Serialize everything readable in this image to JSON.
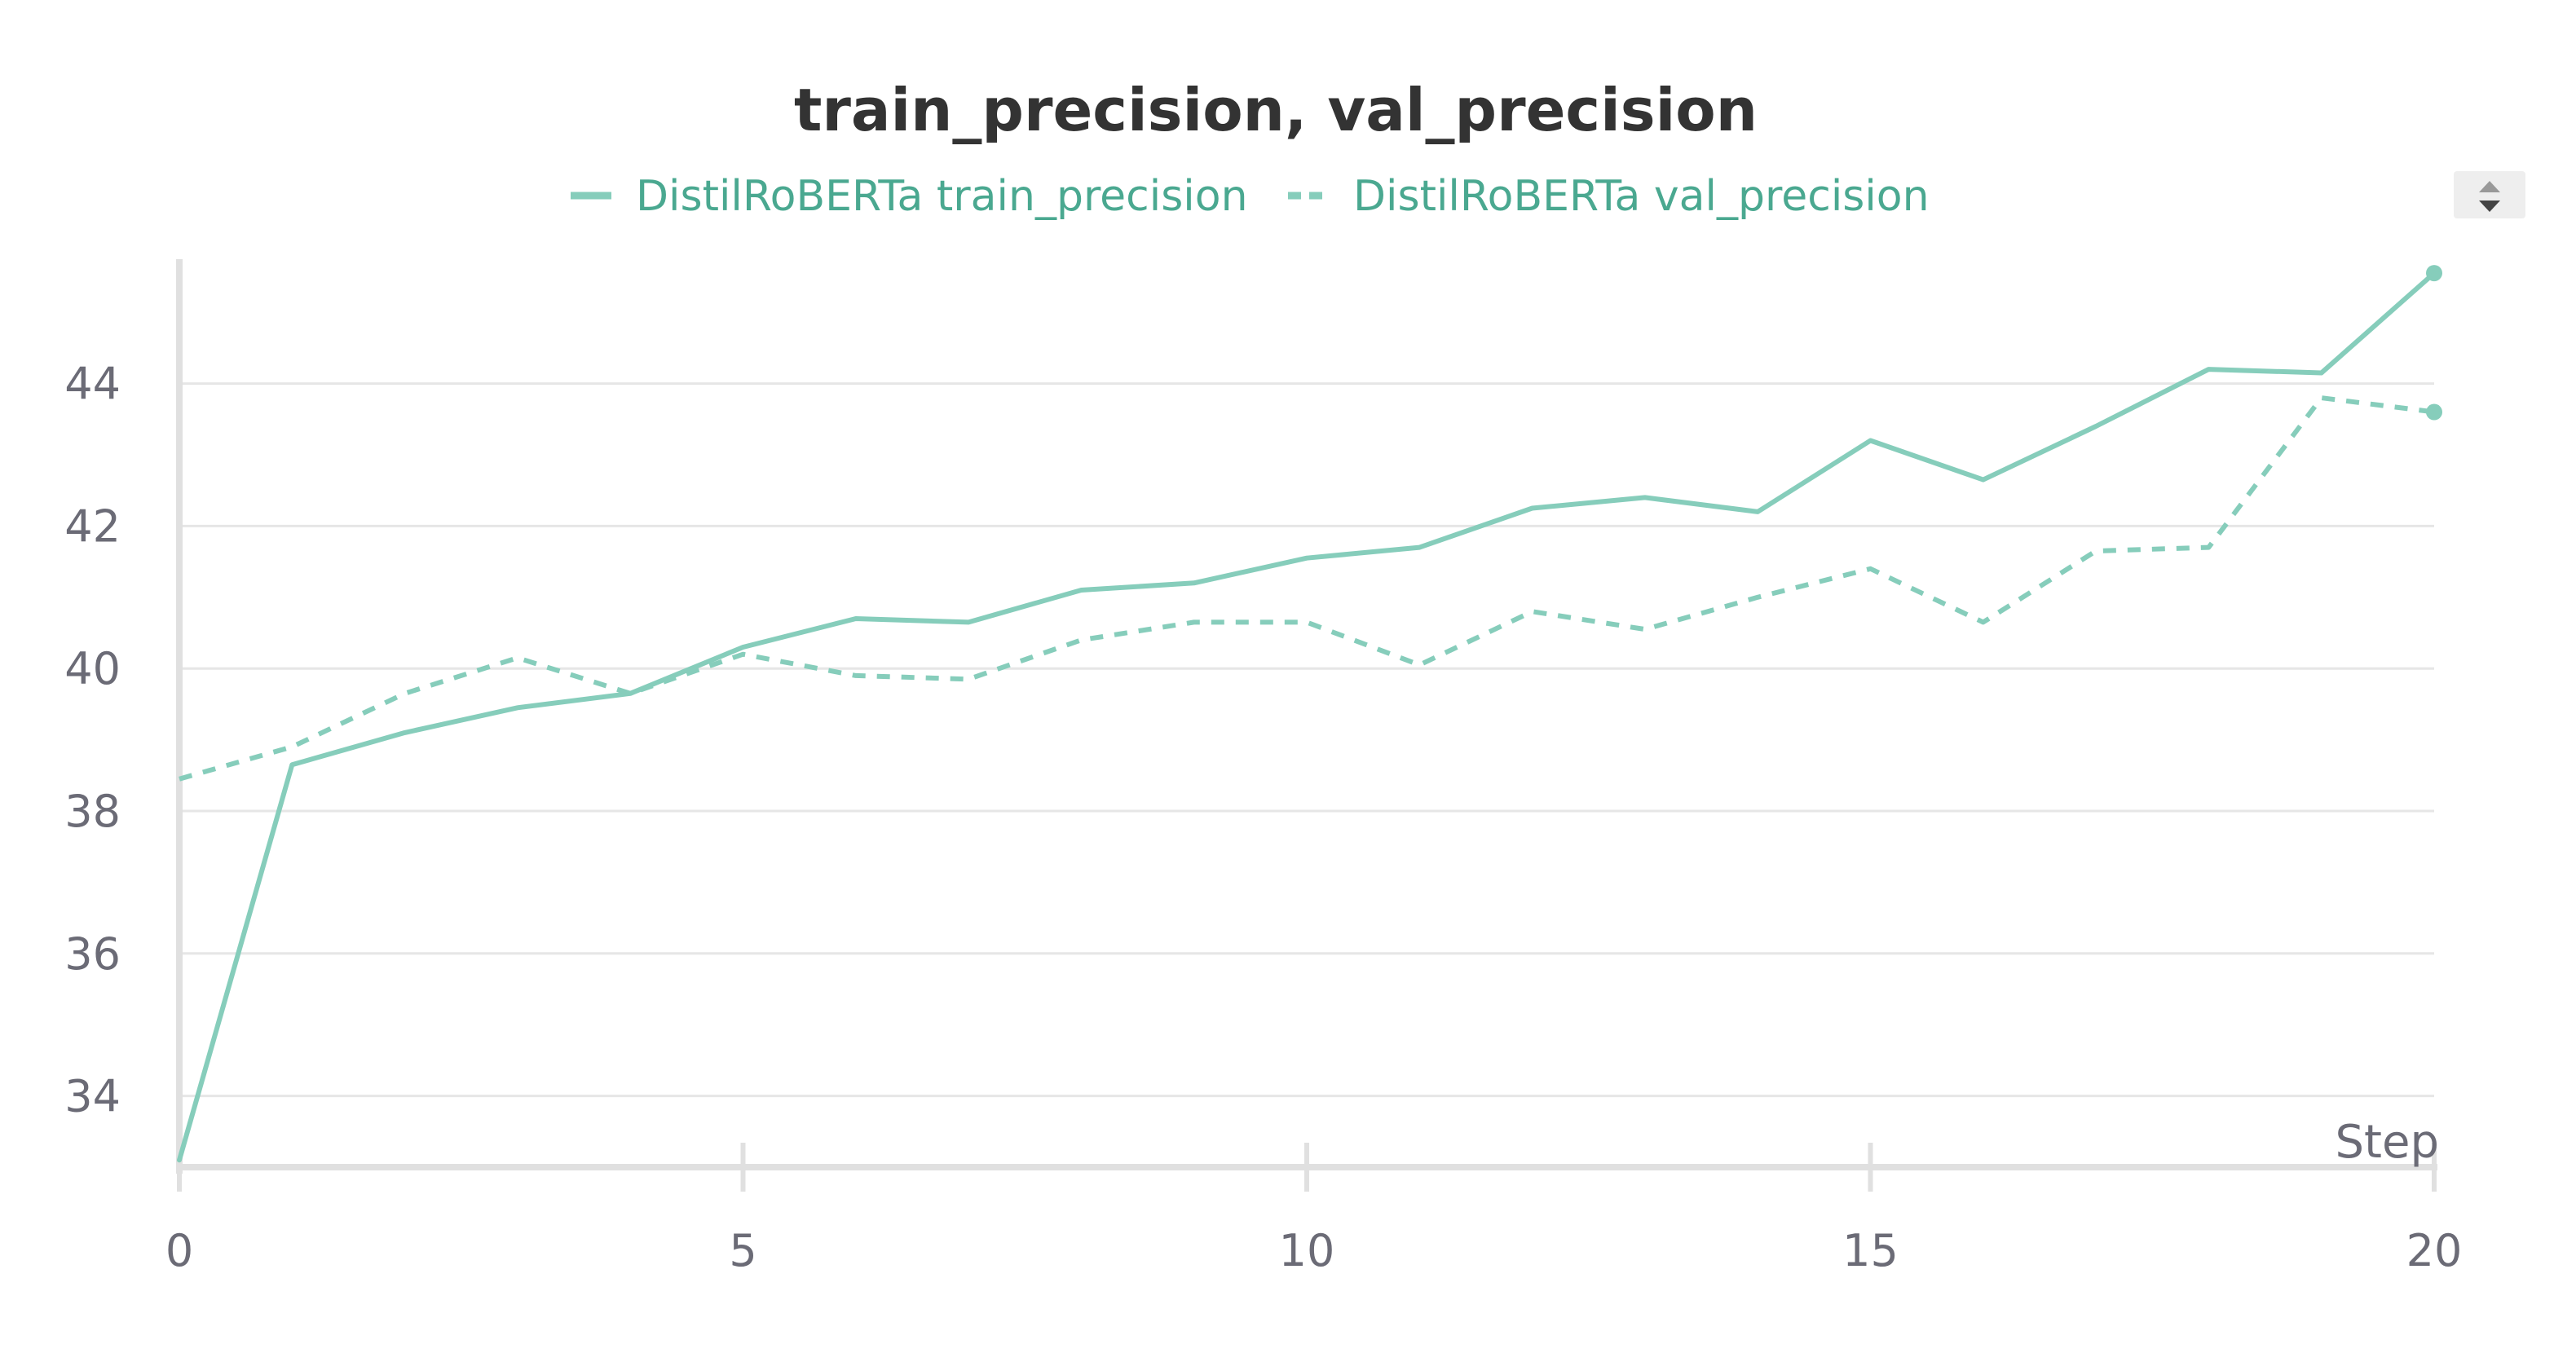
{
  "chart_data": {
    "type": "line",
    "title": "train_precision, val_precision",
    "xlabel": "Step",
    "ylabel": "",
    "xlim": [
      0,
      20
    ],
    "ylim": [
      33,
      45.7
    ],
    "x_ticks": [
      0,
      5,
      10,
      15,
      20
    ],
    "y_ticks": [
      34,
      36,
      38,
      40,
      42,
      44
    ],
    "grid": "horizontal",
    "legend_position": "top-center",
    "x": [
      0,
      1,
      2,
      3,
      4,
      5,
      6,
      7,
      8,
      9,
      10,
      11,
      12,
      13,
      14,
      15,
      16,
      17,
      18,
      19,
      20
    ],
    "series": [
      {
        "name": "DistilRoBERTa train_precision",
        "style": "solid",
        "color": "#86cdbb",
        "values": [
          33.1,
          38.65,
          39.1,
          39.45,
          39.65,
          40.3,
          40.7,
          40.65,
          41.1,
          41.2,
          41.55,
          41.7,
          42.25,
          42.4,
          42.2,
          43.2,
          42.65,
          43.4,
          44.2,
          44.15,
          45.55
        ]
      },
      {
        "name": "DistilRoBERTa val_precision",
        "style": "dashed",
        "color": "#86cdbb",
        "values": [
          38.45,
          38.9,
          39.65,
          40.15,
          39.65,
          40.2,
          39.9,
          39.85,
          40.4,
          40.65,
          40.65,
          40.05,
          40.8,
          40.55,
          41.0,
          41.4,
          40.65,
          41.65,
          41.7,
          43.8,
          43.6
        ]
      }
    ]
  },
  "colors": {
    "series": "#86cdbb",
    "legend_text": "#4aa890",
    "title": "#333333",
    "tick_text": "#6b6b76",
    "grid": "#e6e6e6",
    "axis": "#e0e0e0"
  },
  "controls": {
    "legend_scroll_icon": "updown-arrows-icon"
  }
}
